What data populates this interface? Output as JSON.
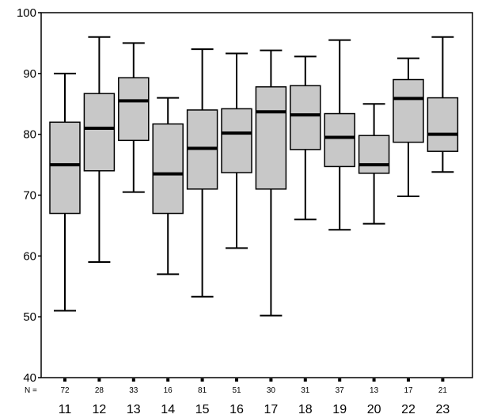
{
  "chart_data": {
    "type": "boxplot",
    "title": "",
    "xlabel": "",
    "ylabel": "",
    "ylim": [
      40,
      100
    ],
    "yticks": [
      "40",
      "50",
      "60",
      "70",
      "80",
      "90",
      "100"
    ],
    "n_prefix": "N =",
    "grid": false,
    "legend": "none",
    "box_color": "#c8c8c8",
    "line_color": "#000000",
    "categories": [
      "11",
      "12",
      "13",
      "14",
      "15",
      "16",
      "17",
      "18",
      "19",
      "20",
      "22",
      "23"
    ],
    "n": [
      "72",
      "28",
      "33",
      "16",
      "81",
      "51",
      "30",
      "31",
      "37",
      "13",
      "17",
      "21"
    ],
    "boxes": [
      {
        "min": 51,
        "q1": 67,
        "median": 75,
        "q3": 82,
        "max": 90
      },
      {
        "min": 59,
        "q1": 74,
        "median": 81,
        "q3": 86.7,
        "max": 96
      },
      {
        "min": 70.5,
        "q1": 79,
        "median": 85.5,
        "q3": 89.3,
        "max": 95
      },
      {
        "min": 57,
        "q1": 67,
        "median": 73.5,
        "q3": 81.7,
        "max": 86
      },
      {
        "min": 53.3,
        "q1": 71,
        "median": 77.7,
        "q3": 84,
        "max": 94
      },
      {
        "min": 61.3,
        "q1": 73.7,
        "median": 80.2,
        "q3": 84.2,
        "max": 93.3
      },
      {
        "min": 50.2,
        "q1": 71,
        "median": 83.7,
        "q3": 87.8,
        "max": 93.8
      },
      {
        "min": 66,
        "q1": 77.5,
        "median": 83.2,
        "q3": 88,
        "max": 92.8
      },
      {
        "min": 64.3,
        "q1": 74.7,
        "median": 79.5,
        "q3": 83.4,
        "max": 95.5
      },
      {
        "min": 65.3,
        "q1": 73.6,
        "median": 75,
        "q3": 79.8,
        "max": 85
      },
      {
        "min": 69.8,
        "q1": 78.7,
        "median": 85.9,
        "q3": 89,
        "max": 92.5
      },
      {
        "min": 73.8,
        "q1": 77.2,
        "median": 80,
        "q3": 86,
        "max": 96
      }
    ]
  }
}
